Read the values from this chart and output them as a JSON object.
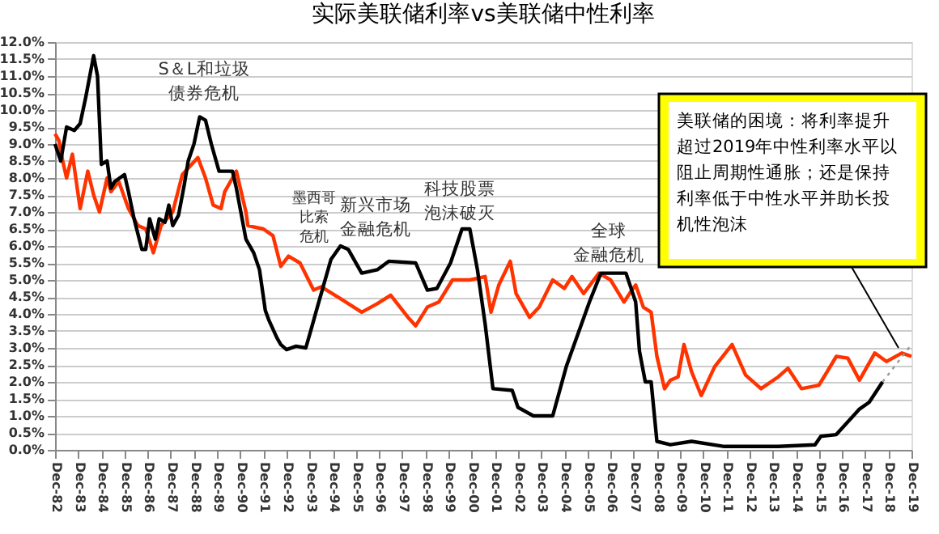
{
  "chart_data": {
    "type": "line",
    "title": "实际美联储利率vs美联储中性利率",
    "xlim": [
      "1982-12",
      "2019-12"
    ],
    "xticks": [
      {
        "value": "1982-12",
        "label": "Dec-82"
      },
      {
        "value": "1983-12",
        "label": "Dec-83"
      },
      {
        "value": "1984-12",
        "label": "Dec-84"
      },
      {
        "value": "1985-12",
        "label": "Dec-85"
      },
      {
        "value": "1986-12",
        "label": "Dec-86"
      },
      {
        "value": "1987-12",
        "label": "Dec-87"
      },
      {
        "value": "1988-12",
        "label": "Dec-88"
      },
      {
        "value": "1989-12",
        "label": "Dec-89"
      },
      {
        "value": "1990-12",
        "label": "Dec-90"
      },
      {
        "value": "1991-12",
        "label": "Dec-91"
      },
      {
        "value": "1992-12",
        "label": "Dec-92"
      },
      {
        "value": "1993-12",
        "label": "Dec-93"
      },
      {
        "value": "1994-12",
        "label": "Dec-94"
      },
      {
        "value": "1995-12",
        "label": "Dec-95"
      },
      {
        "value": "1996-12",
        "label": "Dec-96"
      },
      {
        "value": "1997-12",
        "label": "Dec-97"
      },
      {
        "value": "1998-12",
        "label": "Dec-98"
      },
      {
        "value": "1999-12",
        "label": "Dec-99"
      },
      {
        "value": "2000-12",
        "label": "Dec-00"
      },
      {
        "value": "2001-12",
        "label": "Dec-01"
      },
      {
        "value": "2002-12",
        "label": "Dec-02"
      },
      {
        "value": "2003-12",
        "label": "Dec-03"
      },
      {
        "value": "2004-12",
        "label": "Dec-04"
      },
      {
        "value": "2005-12",
        "label": "Dec-05"
      },
      {
        "value": "2006-12",
        "label": "Dec-06"
      },
      {
        "value": "2007-12",
        "label": "Dec-07"
      },
      {
        "value": "2008-12",
        "label": "Dec-08"
      },
      {
        "value": "2009-12",
        "label": "Dec-09"
      },
      {
        "value": "2010-12",
        "label": "Dec-10"
      },
      {
        "value": "2011-12",
        "label": "Dec-11"
      },
      {
        "value": "2012-12",
        "label": "Dec-12"
      },
      {
        "value": "2013-12",
        "label": "Dec-13"
      },
      {
        "value": "2014-12",
        "label": "Dec-14"
      },
      {
        "value": "2015-12",
        "label": "Dec-15"
      },
      {
        "value": "2016-12",
        "label": "Dec-16"
      },
      {
        "value": "2017-12",
        "label": "Dec-17"
      },
      {
        "value": "2018-12",
        "label": "Dec-18"
      },
      {
        "value": "2019-12",
        "label": "Dec-19"
      }
    ],
    "ylim": [
      0,
      12
    ],
    "yticks": [
      {
        "value": 0,
        "label": "0.0%"
      },
      {
        "value": 0.5,
        "label": "0.5%"
      },
      {
        "value": 1,
        "label": "1.0%"
      },
      {
        "value": 1.5,
        "label": "1.5%"
      },
      {
        "value": 2,
        "label": "2.0%"
      },
      {
        "value": 2.5,
        "label": "2.5%"
      },
      {
        "value": 3,
        "label": "3.0%"
      },
      {
        "value": 3.5,
        "label": "3.5%"
      },
      {
        "value": 4,
        "label": "4.0%"
      },
      {
        "value": 4.5,
        "label": "4.5%"
      },
      {
        "value": 5,
        "label": "5.0%"
      },
      {
        "value": 5.5,
        "label": "5.5%"
      },
      {
        "value": 6,
        "label": "6.0%"
      },
      {
        "value": 6.5,
        "label": "6.5%"
      },
      {
        "value": 7,
        "label": "7.0%"
      },
      {
        "value": 7.5,
        "label": "7.5%"
      },
      {
        "value": 8,
        "label": "8.0%"
      },
      {
        "value": 8.5,
        "label": "8.5%"
      },
      {
        "value": 9,
        "label": "9.0%"
      },
      {
        "value": 9.5,
        "label": "9.5%"
      },
      {
        "value": 10,
        "label": "10.0%"
      },
      {
        "value": 10.5,
        "label": "10.5%"
      },
      {
        "value": 11,
        "label": "11.0%"
      },
      {
        "value": 11.5,
        "label": "11.5%"
      },
      {
        "value": 12,
        "label": "12.0%"
      }
    ],
    "grid": "y",
    "series": [
      {
        "color": "#ff3300",
        "x": [
          "1982-12",
          "1983-02",
          "1983-04",
          "1983-06",
          "1983-09",
          "1984-01",
          "1984-05",
          "1984-08",
          "1984-11",
          "1985-03",
          "1985-05",
          "1985-09",
          "1986-02",
          "1986-07",
          "1986-11",
          "1987-03",
          "1987-07",
          "1988-01",
          "1988-06",
          "1989-02",
          "1989-06",
          "1989-10",
          "1990-02",
          "1990-04",
          "1990-08",
          "1990-10",
          "1991-03",
          "1991-04",
          "1991-12",
          "1992-05",
          "1992-09",
          "1993-01",
          "1993-07",
          "1994-02",
          "1994-06",
          "1995-04",
          "1996-03",
          "1996-11",
          "1997-06",
          "1998-03",
          "1998-07",
          "1999-01",
          "1999-07",
          "2000-02",
          "2000-11",
          "2001-07",
          "2001-10",
          "2002-02",
          "2002-08",
          "2002-11",
          "2003-06",
          "2003-11",
          "2004-06",
          "2004-12",
          "2005-04",
          "2005-10",
          "2006-06",
          "2006-12",
          "2007-07",
          "2007-11",
          "2008-01",
          "2008-05",
          "2008-09",
          "2008-12",
          "2009-04",
          "2009-07",
          "2009-11",
          "2010-02",
          "2010-06",
          "2010-11",
          "2011-06",
          "2012-03",
          "2012-10",
          "2013-06",
          "2014-03",
          "2014-08",
          "2015-03",
          "2015-12",
          "2016-09",
          "2017-03",
          "2017-09",
          "2018-05",
          "2018-11",
          "2019-07",
          "2019-12"
        ],
        "values": [
          9.3,
          9.1,
          8.5,
          8.0,
          8.7,
          7.1,
          8.2,
          7.5,
          7.0,
          8.0,
          7.6,
          7.9,
          7.1,
          6.6,
          6.5,
          5.8,
          6.6,
          7.0,
          8.1,
          8.6,
          8.0,
          7.2,
          7.1,
          7.6,
          8.0,
          8.2,
          7.0,
          6.6,
          6.5,
          6.3,
          5.4,
          5.7,
          5.5,
          4.7,
          4.8,
          4.45,
          4.05,
          4.3,
          4.55,
          3.9,
          3.65,
          4.2,
          4.35,
          5.0,
          5.0,
          5.1,
          4.05,
          4.85,
          5.55,
          4.6,
          3.9,
          4.2,
          5.0,
          4.75,
          5.1,
          4.6,
          5.2,
          5.0,
          4.35,
          4.7,
          4.85,
          4.2,
          4.05,
          2.75,
          1.8,
          2.05,
          2.15,
          3.1,
          2.3,
          1.6,
          2.45,
          3.1,
          2.2,
          1.8,
          2.15,
          2.4,
          1.8,
          1.9,
          2.75,
          2.7,
          2.05,
          2.85,
          2.6,
          2.85,
          2.75
        ]
      },
      {
        "color": "#000000",
        "x": [
          "1982-12",
          "1983-03",
          "1983-06",
          "1983-10",
          "1984-01",
          "1984-04",
          "1984-06",
          "1984-08",
          "1984-10",
          "1984-12",
          "1985-03",
          "1985-05",
          "1985-07",
          "1985-12",
          "1986-02",
          "1986-05",
          "1986-09",
          "1986-11",
          "1987-01",
          "1987-04",
          "1987-06",
          "1987-09",
          "1987-11",
          "1988-01",
          "1988-04",
          "1988-07",
          "1988-09",
          "1988-12",
          "1989-03",
          "1989-06",
          "1989-09",
          "1989-11",
          "1990-01",
          "1990-08",
          "1990-10",
          "1991-03",
          "1991-07",
          "1991-10",
          "1992-01",
          "1992-03",
          "1992-07",
          "1992-09",
          "1992-12",
          "1993-05",
          "1993-10",
          "1994-01",
          "1994-04",
          "1994-11",
          "1995-04",
          "1995-08",
          "1996-03",
          "1996-11",
          "1997-05",
          "1998-07",
          "1999-01",
          "1999-06",
          "2000-01",
          "2000-07",
          "2000-11",
          "2001-03",
          "2001-07",
          "2001-11",
          "2002-09",
          "2002-12",
          "2003-08",
          "2004-06",
          "2005-01",
          "2006-01",
          "2006-07",
          "2007-05",
          "2007-08",
          "2008-01",
          "2008-03",
          "2008-06",
          "2008-09",
          "2008-12",
          "2009-07",
          "2010-06",
          "2011-11",
          "2014-03",
          "2015-10",
          "2016-01",
          "2016-09",
          "2017-09",
          "2018-02",
          "2018-09"
        ],
        "values": [
          9.0,
          8.5,
          9.5,
          9.4,
          9.6,
          10.4,
          11.0,
          11.6,
          11.0,
          8.4,
          8.5,
          7.7,
          7.9,
          8.1,
          7.6,
          6.8,
          5.9,
          5.9,
          6.8,
          6.2,
          6.8,
          6.7,
          7.2,
          6.6,
          6.9,
          7.8,
          8.5,
          9.0,
          9.8,
          9.7,
          9.0,
          8.6,
          8.2,
          8.2,
          7.7,
          6.2,
          5.8,
          5.3,
          4.1,
          3.8,
          3.3,
          3.1,
          2.95,
          3.05,
          3.0,
          3.6,
          4.2,
          5.6,
          6.0,
          5.9,
          5.2,
          5.3,
          5.55,
          5.5,
          4.7,
          4.75,
          5.5,
          6.5,
          6.5,
          5.3,
          3.7,
          1.8,
          1.75,
          1.25,
          1.0,
          1.0,
          2.45,
          4.35,
          5.2,
          5.2,
          5.2,
          4.35,
          2.9,
          2.0,
          2.0,
          0.25,
          0.15,
          0.25,
          0.1,
          0.1,
          0.15,
          0.4,
          0.45,
          1.2,
          1.4,
          2.0
        ]
      },
      {
        "color": "#999999",
        "line_style": "dotted",
        "x": [
          "2018-09",
          "2019-12"
        ],
        "values": [
          2.0,
          3.1
        ]
      }
    ],
    "annotations": [
      "S＆L和垃圾债券危机",
      "墨西哥比索危机",
      "新兴市场金融危机",
      "科技股票泡沫破灭",
      "全球金融危机",
      "美联储的困境：将利率提升超过2019年中性利率水平以阻止周期性通胀；还是保持利率低于中性水平并助长投机性泡沫"
    ]
  }
}
